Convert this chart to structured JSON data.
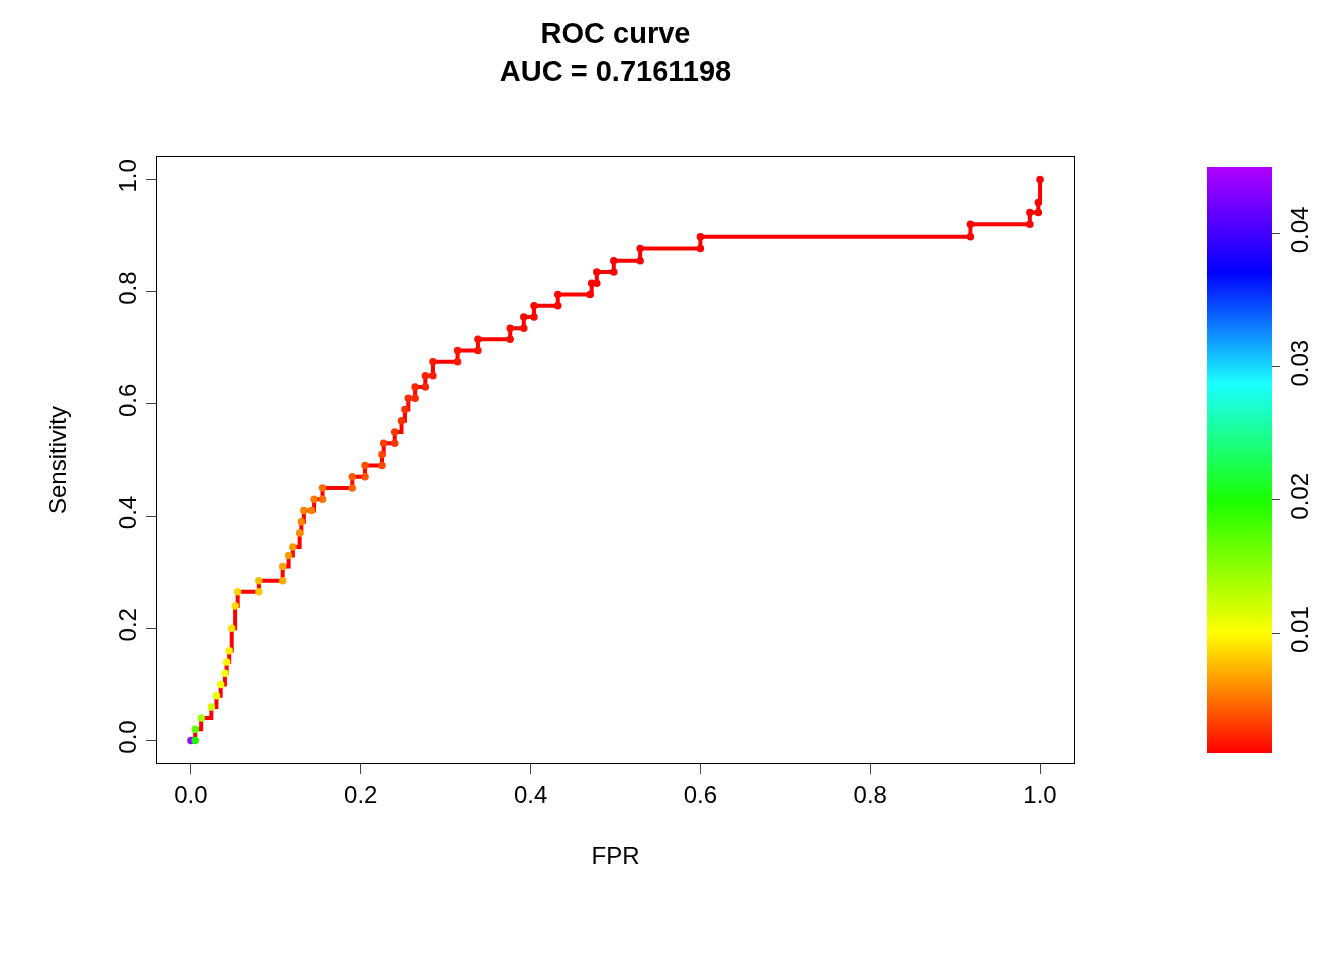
{
  "chart_data": {
    "type": "step",
    "title": "ROC curve\nAUC = 0.7161198",
    "xlabel": "FPR",
    "ylabel": "Sensitivity",
    "xlim": [
      -0.04,
      1.04
    ],
    "ylim": [
      -0.04,
      1.04
    ],
    "xticks": [
      {
        "value": 0,
        "label": "0.0"
      },
      0.2,
      0.4,
      0.6,
      0.8,
      {
        "value": 1,
        "label": "1.0"
      }
    ],
    "yticks": [
      {
        "value": 0,
        "label": "0.0"
      },
      0.2,
      0.4,
      0.6,
      0.8,
      {
        "value": 1,
        "label": "1.0"
      }
    ],
    "clim": [
      0.001,
      0.045
    ],
    "cticks": [
      0.01,
      0.02,
      0.03,
      0.04
    ],
    "line_style": "solid",
    "series": [
      {
        "color": "#ff0000",
        "x": [
          0,
          0.005,
          0.005,
          0.012,
          0.024,
          0.03,
          0.035,
          0.04,
          0.042,
          0.045,
          0.048,
          0.052,
          0.055,
          0.08,
          0.08,
          0.108,
          0.108,
          0.115,
          0.12,
          0.128,
          0.13,
          0.133,
          0.142,
          0.145,
          0.155,
          0.155,
          0.19,
          0.19,
          0.205,
          0.205,
          0.225,
          0.225,
          0.227,
          0.24,
          0.24,
          0.248,
          0.252,
          0.256,
          0.264,
          0.264,
          0.276,
          0.276,
          0.285,
          0.285,
          0.314,
          0.314,
          0.338,
          0.338,
          0.376,
          0.376,
          0.392,
          0.392,
          0.404,
          0.404,
          0.432,
          0.432,
          0.47,
          0.472,
          0.478,
          0.478,
          0.498,
          0.498,
          0.529,
          0.529,
          0.6,
          0.6,
          0.918,
          0.918,
          0.988,
          0.988,
          0.998,
          0.998,
          1.0
        ],
        "values": [
          0,
          0,
          0.02,
          0.04,
          0.06,
          0.08,
          0.1,
          0.12,
          0.14,
          0.16,
          0.2,
          0.24,
          0.265,
          0.265,
          0.285,
          0.285,
          0.31,
          0.33,
          0.345,
          0.37,
          0.39,
          0.41,
          0.41,
          0.43,
          0.43,
          0.45,
          0.45,
          0.47,
          0.47,
          0.49,
          0.49,
          0.51,
          0.53,
          0.53,
          0.55,
          0.57,
          0.59,
          0.61,
          0.61,
          0.63,
          0.63,
          0.65,
          0.65,
          0.675,
          0.675,
          0.695,
          0.695,
          0.715,
          0.715,
          0.735,
          0.735,
          0.755,
          0.755,
          0.775,
          0.775,
          0.795,
          0.795,
          0.815,
          0.815,
          0.835,
          0.835,
          0.855,
          0.855,
          0.877,
          0.877,
          0.898,
          0.898,
          0.92,
          0.92,
          0.941,
          0.941,
          0.959,
          1.0
        ],
        "marker": "none"
      },
      {
        "type": "scatter",
        "marker": "circle",
        "colors": [
          "#a800ff",
          "#1aff00",
          "#5fff00",
          "#a3ff00",
          "#d1ff00",
          "#e8ff00",
          "#f3ff00",
          "#ffff00",
          "#fff900",
          "#fff000",
          "#ffe200",
          "#ffdc00",
          "#ffd400",
          "#ffc600",
          "#ffb800",
          "#ffaa00",
          "#ffa400",
          "#ff9e00",
          "#ff9900",
          "#ff8d00",
          "#ff8800",
          "#ff8200",
          "#ff7f00",
          "#ff7900",
          "#ff7100",
          "#ff6b00",
          "#ff6300",
          "#ff5d00",
          "#ff5500",
          "#ff4f00",
          "#ff4a00",
          "#ff4400",
          "#ff3e00",
          "#ff3900",
          "#ff3600",
          "#ff3300",
          "#ff3000",
          "#ff2d00",
          "#ff2a00",
          "#ff2800",
          "#ff2500",
          "#ff2200",
          "#ff1f00",
          "#ff1c00",
          "#ff1900",
          "#ff1700",
          "#ff1400",
          "#ff1100",
          "#ff0e00",
          "#ff0e00",
          "#ff0b00",
          "#ff0b00",
          "#ff0800",
          "#ff0800",
          "#ff0600",
          "#ff0600",
          "#ff0300",
          "#ff0300",
          "#ff0300",
          "#ff0300",
          "#ff0000",
          "#ff0000",
          "#ff0000",
          "#ff0000",
          "#ff0000",
          "#ff0000",
          "#ff0000",
          "#ff0000",
          "#ff0000",
          "#ff0000",
          "#ff0000",
          "#ff0000",
          "#ff0000"
        ],
        "x": [
          0,
          0.005,
          0.005,
          0.012,
          0.024,
          0.03,
          0.035,
          0.04,
          0.042,
          0.045,
          0.048,
          0.052,
          0.055,
          0.08,
          0.08,
          0.108,
          0.108,
          0.115,
          0.12,
          0.128,
          0.13,
          0.133,
          0.142,
          0.145,
          0.155,
          0.155,
          0.19,
          0.19,
          0.205,
          0.205,
          0.225,
          0.225,
          0.227,
          0.24,
          0.24,
          0.248,
          0.252,
          0.256,
          0.264,
          0.264,
          0.276,
          0.276,
          0.285,
          0.285,
          0.314,
          0.314,
          0.338,
          0.338,
          0.376,
          0.376,
          0.392,
          0.392,
          0.404,
          0.404,
          0.432,
          0.432,
          0.47,
          0.472,
          0.478,
          0.478,
          0.498,
          0.498,
          0.529,
          0.529,
          0.6,
          0.6,
          0.918,
          0.918,
          0.988,
          0.988,
          0.998,
          0.998,
          1.0
        ],
        "values": [
          0,
          0,
          0.02,
          0.04,
          0.06,
          0.08,
          0.1,
          0.12,
          0.14,
          0.16,
          0.2,
          0.24,
          0.265,
          0.265,
          0.285,
          0.285,
          0.31,
          0.33,
          0.345,
          0.37,
          0.39,
          0.41,
          0.41,
          0.43,
          0.43,
          0.45,
          0.45,
          0.47,
          0.47,
          0.49,
          0.49,
          0.51,
          0.53,
          0.53,
          0.55,
          0.57,
          0.59,
          0.61,
          0.61,
          0.63,
          0.63,
          0.65,
          0.65,
          0.675,
          0.675,
          0.695,
          0.695,
          0.715,
          0.715,
          0.735,
          0.735,
          0.755,
          0.755,
          0.775,
          0.775,
          0.795,
          0.795,
          0.815,
          0.815,
          0.835,
          0.835,
          0.855,
          0.855,
          0.877,
          0.877,
          0.898,
          0.898,
          0.92,
          0.92,
          0.941,
          0.941,
          0.959,
          1.0
        ],
        "cvalues": [
          0.044,
          0.02,
          0.017,
          0.014,
          0.012,
          0.011,
          0.0105,
          0.01,
          0.0098,
          0.0095,
          0.009,
          0.0088,
          0.0085,
          0.008,
          0.0075,
          0.007,
          0.0068,
          0.0066,
          0.0064,
          0.006,
          0.0058,
          0.0056,
          0.0055,
          0.0053,
          0.005,
          0.0048,
          0.0045,
          0.0043,
          0.004,
          0.0038,
          0.0036,
          0.0034,
          0.0032,
          0.003,
          0.0029,
          0.0028,
          0.0027,
          0.0026,
          0.0025,
          0.0024,
          0.0023,
          0.0022,
          0.0021,
          0.002,
          0.0019,
          0.0018,
          0.0017,
          0.0016,
          0.0015,
          0.0015,
          0.0014,
          0.0014,
          0.0013,
          0.0013,
          0.0012,
          0.0012,
          0.0011,
          0.0011,
          0.0011,
          0.0011,
          0.001,
          0.001,
          0.001,
          0.001,
          0.001,
          0.001,
          0.001,
          0.001,
          0.001,
          0.001,
          0.001,
          0.001,
          0.001
        ]
      }
    ]
  }
}
